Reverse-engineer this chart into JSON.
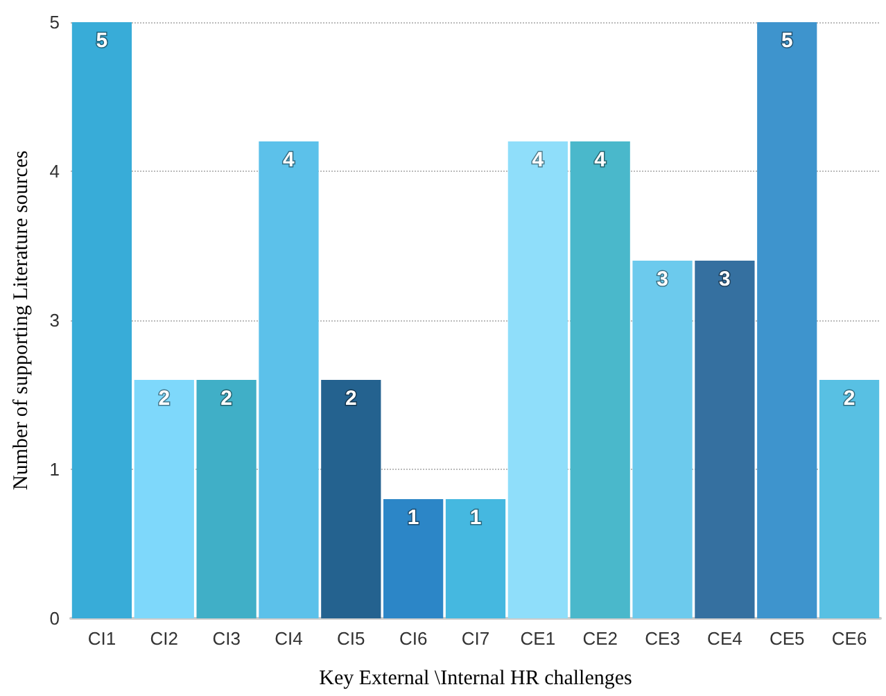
{
  "chart_data": {
    "type": "bar",
    "xlabel": "Key External \\Internal HR challenges",
    "ylabel": "Number of supporting Literature sources",
    "categories": [
      "CI1",
      "CI2",
      "CI3",
      "CI4",
      "CI5",
      "CI6",
      "CI7",
      "CE1",
      "CE2",
      "CE3",
      "CE4",
      "CE5",
      "CE6"
    ],
    "values": [
      5,
      2,
      2,
      4,
      2,
      1,
      1,
      4,
      4,
      3,
      3,
      5,
      2
    ],
    "colors": [
      "#38acd8",
      "#7ed8fb",
      "#40afc7",
      "#5cc1ea",
      "#24628f",
      "#2c86c7",
      "#45b8e0",
      "#8fdefa",
      "#4ab8cb",
      "#6ccaed",
      "#3570a0",
      "#3e94cd",
      "#58c0e3"
    ],
    "data_labels": true,
    "ylim": [
      0,
      5
    ],
    "yticks": [
      {
        "value": 0,
        "label": "0"
      },
      {
        "value": 1.25,
        "label": "1"
      },
      {
        "value": 2.5,
        "label": "3"
      },
      {
        "value": 3.75,
        "label": "4"
      },
      {
        "value": 5,
        "label": "5"
      }
    ],
    "grid": "y"
  }
}
